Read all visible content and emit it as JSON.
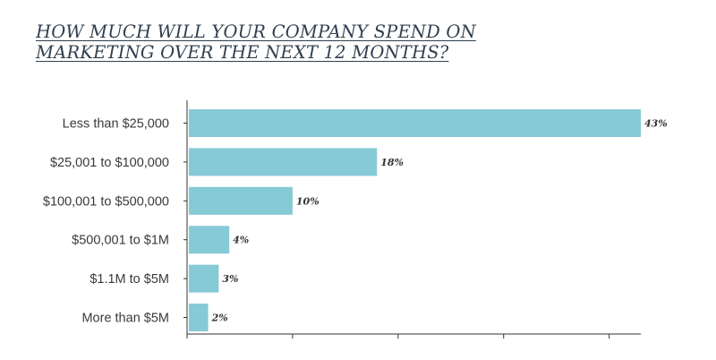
{
  "chart_data": {
    "type": "bar",
    "orientation": "horizontal",
    "title": "HOW MUCH WILL YOUR COMPANY SPEND ON MARKETING OVER THE NEXT 12 MONTHS?",
    "title_lines": [
      "HOW MUCH WILL YOUR COMPANY SPEND ON",
      "MARKETING OVER THE NEXT 12 MONTHS?"
    ],
    "categories": [
      "Less than $25,000",
      "$25,001 to $100,000",
      "$100,001 to $500,000",
      "$500,001 to $1M",
      "$1.1M to $5M",
      "More than $5M"
    ],
    "values": [
      43,
      18,
      10,
      4,
      3,
      2
    ],
    "value_labels": [
      "43%",
      "18%",
      "10%",
      "4%",
      "3%",
      "2%"
    ],
    "xlim": [
      0,
      43
    ],
    "x_ticks": [
      0,
      10,
      20,
      30,
      40
    ],
    "tick_labels_shown": false,
    "grid": false,
    "bar_color": "#86cad6",
    "axis_color": "#333333"
  }
}
